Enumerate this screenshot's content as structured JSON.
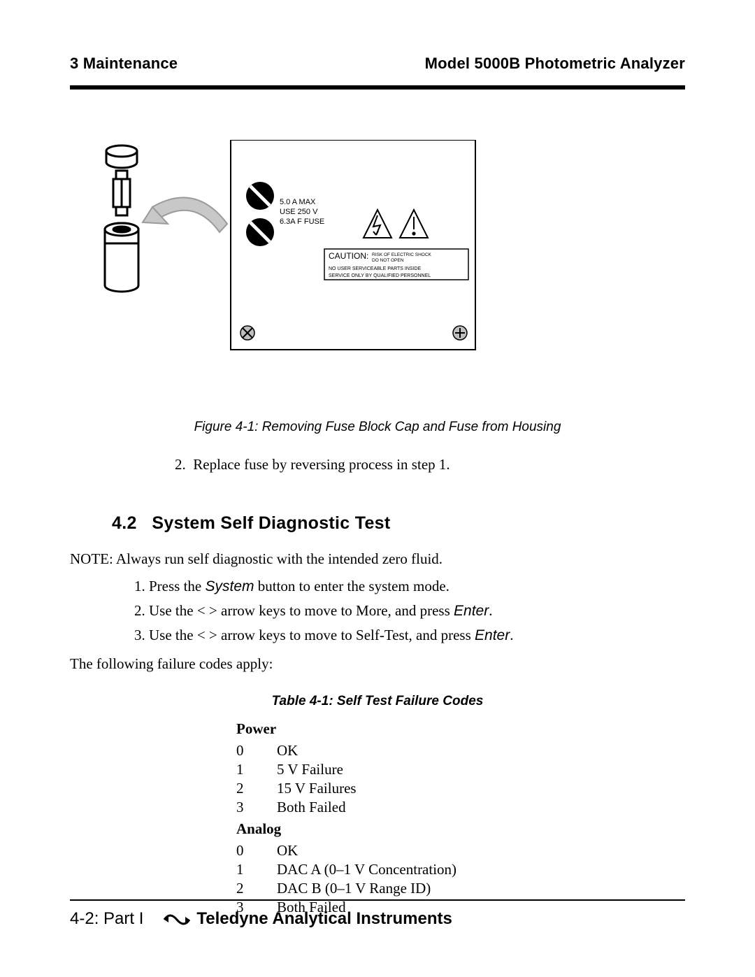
{
  "header": {
    "left": "3  Maintenance",
    "right": "Model 5000B  Photometric Analyzer"
  },
  "figure": {
    "panel_labels": {
      "line1": "5.0 A MAX",
      "line2": "USE 250 V",
      "line3": "6.3A F FUSE"
    },
    "caution_box": {
      "title": "CAUTION:",
      "sub1": "RISK OF ELECTRIC SHOCK",
      "sub2": "DO NOT OPEN",
      "line2": "NO USER SERVICEABLE PARTS INSIDE",
      "line3": "SERVICE ONLY BY QUALIFIED PERSONNEL"
    },
    "caption": "Figure 4-1: Removing Fuse Block Cap and Fuse from Housing"
  },
  "step2": {
    "num": "2.",
    "text": "Replace fuse by reversing process in step 1."
  },
  "section": {
    "number": "4.2",
    "title": "System Self Diagnostic Test"
  },
  "note": "NOTE: Always run self diagnostic with the intended zero fluid.",
  "steps": [
    {
      "num": "1.",
      "pre": "Press the ",
      "em": "System",
      "post": " button to enter the system mode."
    },
    {
      "num": "2.",
      "pre": "Use the < > arrow keys to move to More, and press ",
      "em": "Enter",
      "post": "."
    },
    {
      "num": "3.",
      "pre": "Use the < > arrow keys to move to Self-Test, and press ",
      "em": "Enter",
      "post": "."
    }
  ],
  "apply": "The following failure codes apply:",
  "table": {
    "title": "Table 4-1: Self Test Failure Codes",
    "groups": [
      {
        "heading": "Power",
        "rows": [
          {
            "code": "0",
            "desc": "OK"
          },
          {
            "code": "1",
            "desc": "5 V Failure"
          },
          {
            "code": "2",
            "desc": "15 V Failures"
          },
          {
            "code": "3",
            "desc": "Both Failed"
          }
        ]
      },
      {
        "heading": "Analog",
        "rows": [
          {
            "code": "0",
            "desc": "OK"
          },
          {
            "code": "1",
            "desc": "DAC A (0–1 V Concentration)"
          },
          {
            "code": "2",
            "desc": "DAC B (0–1 V Range ID)"
          },
          {
            "code": "3",
            "desc": "Both Failed"
          }
        ]
      }
    ]
  },
  "footer": {
    "page": "4-2:  Part I",
    "brand": "Teledyne Analytical Instruments"
  },
  "colors": {
    "text": "#000000",
    "bg": "#ffffff",
    "arrow_fill": "#c8c8c8",
    "arrow_stroke": "#9a9a9a"
  }
}
